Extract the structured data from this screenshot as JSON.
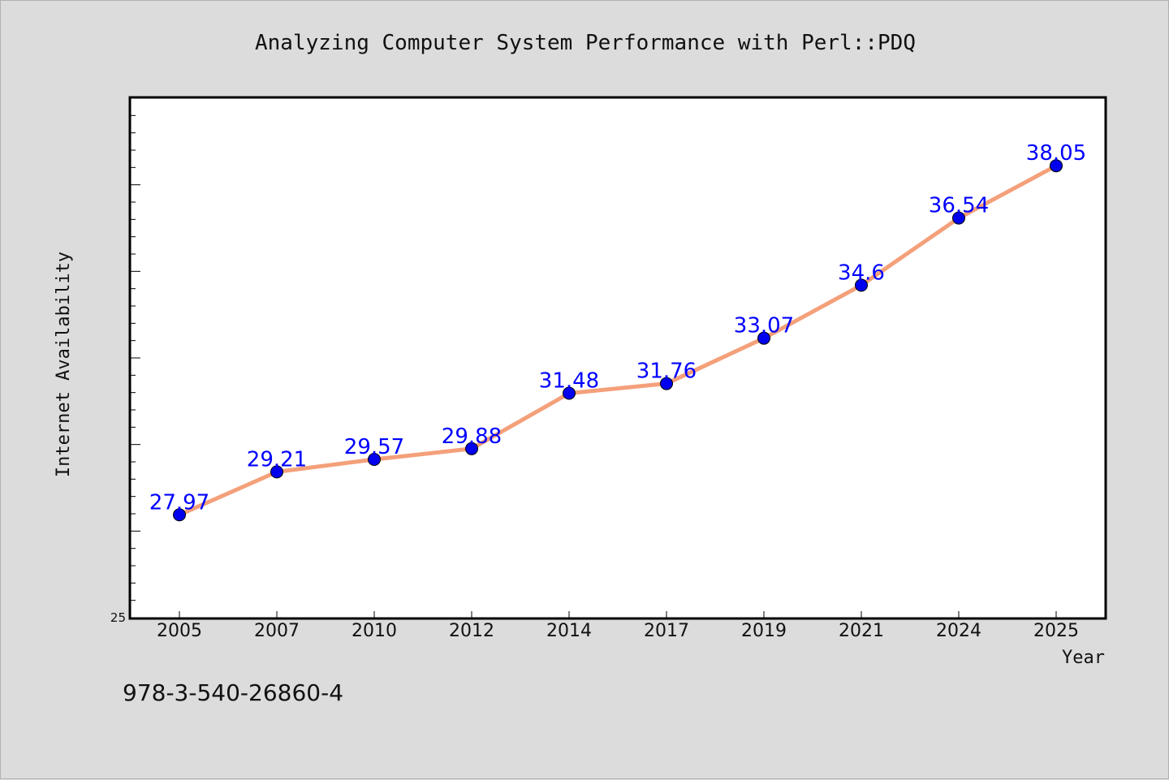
{
  "chart_data": {
    "type": "line",
    "title": "Analyzing Computer System Performance with Perl::PDQ",
    "xlabel": "Year",
    "ylabel": "Internet Availability",
    "categories": [
      "2005",
      "2007",
      "2010",
      "2012",
      "2014",
      "2017",
      "2019",
      "2021",
      "2024",
      "2025"
    ],
    "series": [
      {
        "values": [
          27.97,
          29.21,
          29.57,
          29.88,
          31.48,
          31.76,
          33.07,
          34.6,
          36.54,
          38.05
        ],
        "line_color": "#f4a07a",
        "marker_color": "#0000ee",
        "label_color": "#0000ff"
      }
    ],
    "ylim": [
      25,
      40
    ],
    "y_tick_labels": [
      "25"
    ],
    "grid": false,
    "legend": "none"
  },
  "footnote": "978-3-540-26860-4",
  "colors": {
    "background": "#dcdcdc",
    "plot_background": "#ffffff",
    "axis": "#000000"
  }
}
